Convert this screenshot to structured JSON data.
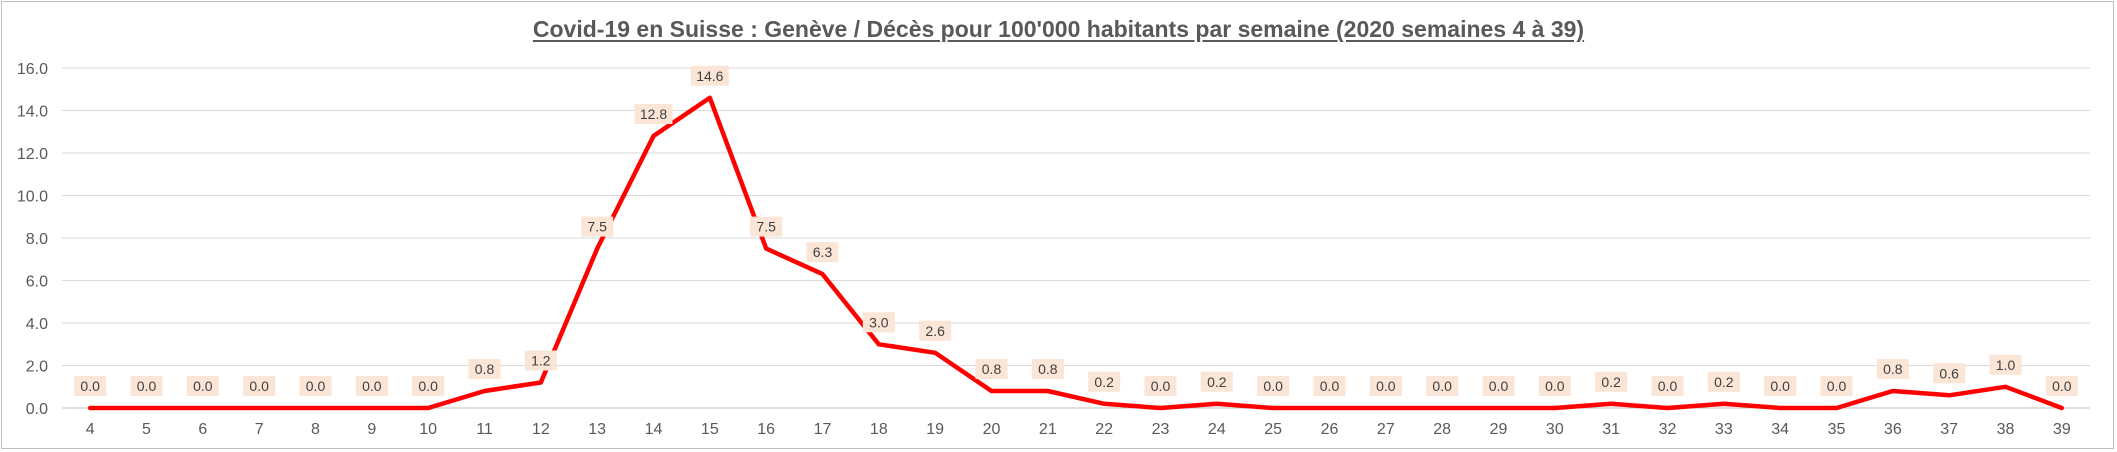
{
  "chart_data": {
    "type": "line",
    "title": "Covid-19 en Suisse : Genève / Décès pour 100'000 habitants par semaine (2020 semaines 4 à 39)",
    "xlabel": "",
    "ylabel": "",
    "x": [
      "4",
      "5",
      "6",
      "7",
      "8",
      "9",
      "10",
      "11",
      "12",
      "13",
      "14",
      "15",
      "16",
      "17",
      "18",
      "19",
      "20",
      "21",
      "22",
      "23",
      "24",
      "25",
      "26",
      "27",
      "28",
      "29",
      "30",
      "31",
      "32",
      "33",
      "34",
      "35",
      "36",
      "37",
      "38",
      "39"
    ],
    "values": [
      0.0,
      0.0,
      0.0,
      0.0,
      0.0,
      0.0,
      0.0,
      0.8,
      1.2,
      7.5,
      12.8,
      14.6,
      7.5,
      6.3,
      3.0,
      2.6,
      0.8,
      0.8,
      0.2,
      0.0,
      0.2,
      0.0,
      0.0,
      0.0,
      0.0,
      0.0,
      0.0,
      0.2,
      0.0,
      0.2,
      0.0,
      0.0,
      0.8,
      0.6,
      1.0,
      0.0
    ],
    "data_labels": [
      "0.0",
      "0.0",
      "0.0",
      "0.0",
      "0.0",
      "0.0",
      "0.0",
      "0.8",
      "1.2",
      "7.5",
      "12.8",
      "14.6",
      "7.5",
      "6.3",
      "3.0",
      "2.6",
      "0.8",
      "0.8",
      "0.2",
      "0.0",
      "0.2",
      "0.0",
      "0.0",
      "0.0",
      "0.0",
      "0.0",
      "0.0",
      "0.2",
      "0.0",
      "0.2",
      "0.0",
      "0.0",
      "0.8",
      "0.6",
      "1.0",
      "0.0"
    ],
    "y_ticks": [
      "0.0",
      "2.0",
      "4.0",
      "6.0",
      "8.0",
      "10.0",
      "12.0",
      "14.0",
      "16.0"
    ],
    "ylim": [
      0,
      16
    ],
    "grid": true,
    "legend": "none",
    "colors": {
      "line": "#ff0000",
      "grid": "#d9d9d9",
      "label_bg": "#fbe5d6",
      "text": "#595959"
    }
  }
}
